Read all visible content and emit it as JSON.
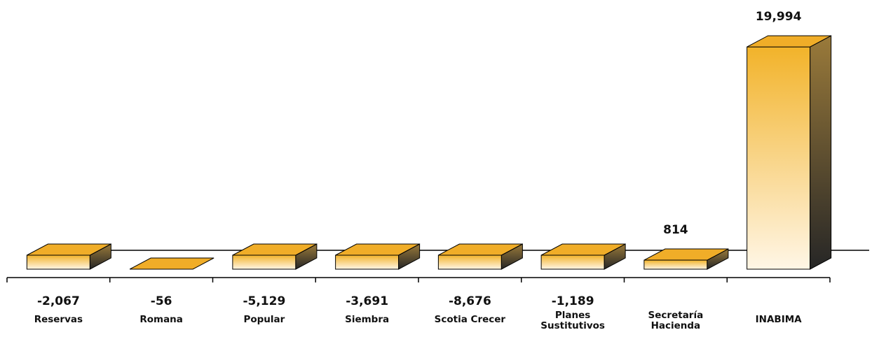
{
  "chart_data": {
    "type": "bar",
    "style": "3d-column",
    "categories": [
      "Reservas",
      "Romana",
      "Popular",
      "Siembra",
      "Scotia Crecer",
      "Planes\nSustitutivos",
      "Secretaría\nHacienda",
      "INABIMA"
    ],
    "values": [
      -2067,
      -56,
      -5129,
      -3691,
      -8676,
      -1189,
      814,
      19994
    ],
    "value_labels": [
      "-2,067",
      "-56",
      "-5,129",
      "-3,691",
      "-8,676",
      "-1,189",
      "814",
      "19,994"
    ],
    "title": "",
    "xlabel": "",
    "ylabel": "",
    "ylim": [
      0,
      20000
    ],
    "grid": false,
    "legend": "none",
    "colors": {
      "front_top": "#f2b32a",
      "front_bottom": "#fff6e6",
      "top_face": "#f0ad28",
      "side_top": "#9a7a3a",
      "side_bottom": "#262626",
      "axis": "#000000"
    }
  }
}
